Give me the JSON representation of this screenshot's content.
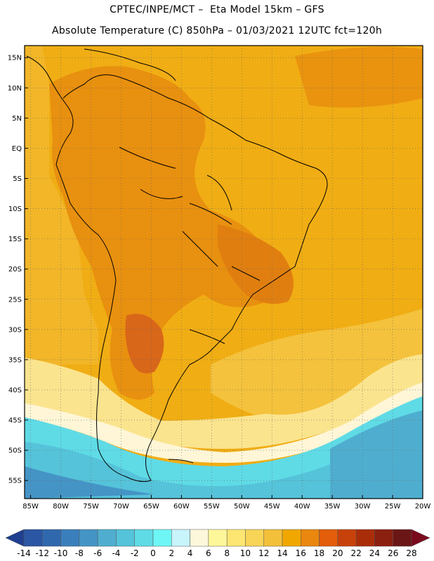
{
  "header": {
    "title_line1": "CPTEC/INPE/MCT –  Eta Model 15km – GFS",
    "title_line2": "Absolute Temperature (C) 850hPa – 01/03/2021 12UTC fct=120h"
  },
  "map": {
    "lat_labels": [
      "15N",
      "10N",
      "5N",
      "EQ",
      "5S",
      "10S",
      "15S",
      "20S",
      "25S",
      "30S",
      "35S",
      "40S",
      "45S",
      "50S",
      "55S"
    ],
    "lat_values": [
      15,
      10,
      5,
      0,
      -5,
      -10,
      -15,
      -20,
      -25,
      -30,
      -35,
      -40,
      -45,
      -50,
      -55
    ],
    "lon_labels": [
      "85W",
      "80W",
      "75W",
      "70W",
      "65W",
      "60W",
      "55W",
      "50W",
      "45W",
      "40W",
      "35W",
      "30W",
      "25W",
      "20W"
    ],
    "lon_values": [
      -85,
      -80,
      -75,
      -70,
      -65,
      -60,
      -55,
      -50,
      -45,
      -40,
      -35,
      -30,
      -25,
      -20
    ],
    "lon_range": [
      -86,
      -20
    ],
    "lat_range": [
      -58,
      17
    ],
    "grid": "dotted"
  },
  "colorbar": {
    "labels": [
      "-14",
      "-12",
      "-10",
      "-8",
      "-6",
      "-4",
      "-2",
      "0",
      "2",
      "4",
      "6",
      "8",
      "10",
      "12",
      "14",
      "16",
      "18",
      "20",
      "22",
      "24",
      "26",
      "28"
    ],
    "colors": [
      "#1f3f8f",
      "#2a56a4",
      "#3068ae",
      "#3a7fbc",
      "#4594c6",
      "#4faecf",
      "#55c3d9",
      "#5fdbe6",
      "#6ef6f6",
      "#c8f4fb",
      "#fdf8dc",
      "#fef79a",
      "#fde672",
      "#f8d457",
      "#f3c03a",
      "#f0a800",
      "#e9870f",
      "#e35d0a",
      "#c7420a",
      "#aa2d0a",
      "#8b1f10",
      "#6b1616",
      "#7a0b1c"
    ]
  }
}
